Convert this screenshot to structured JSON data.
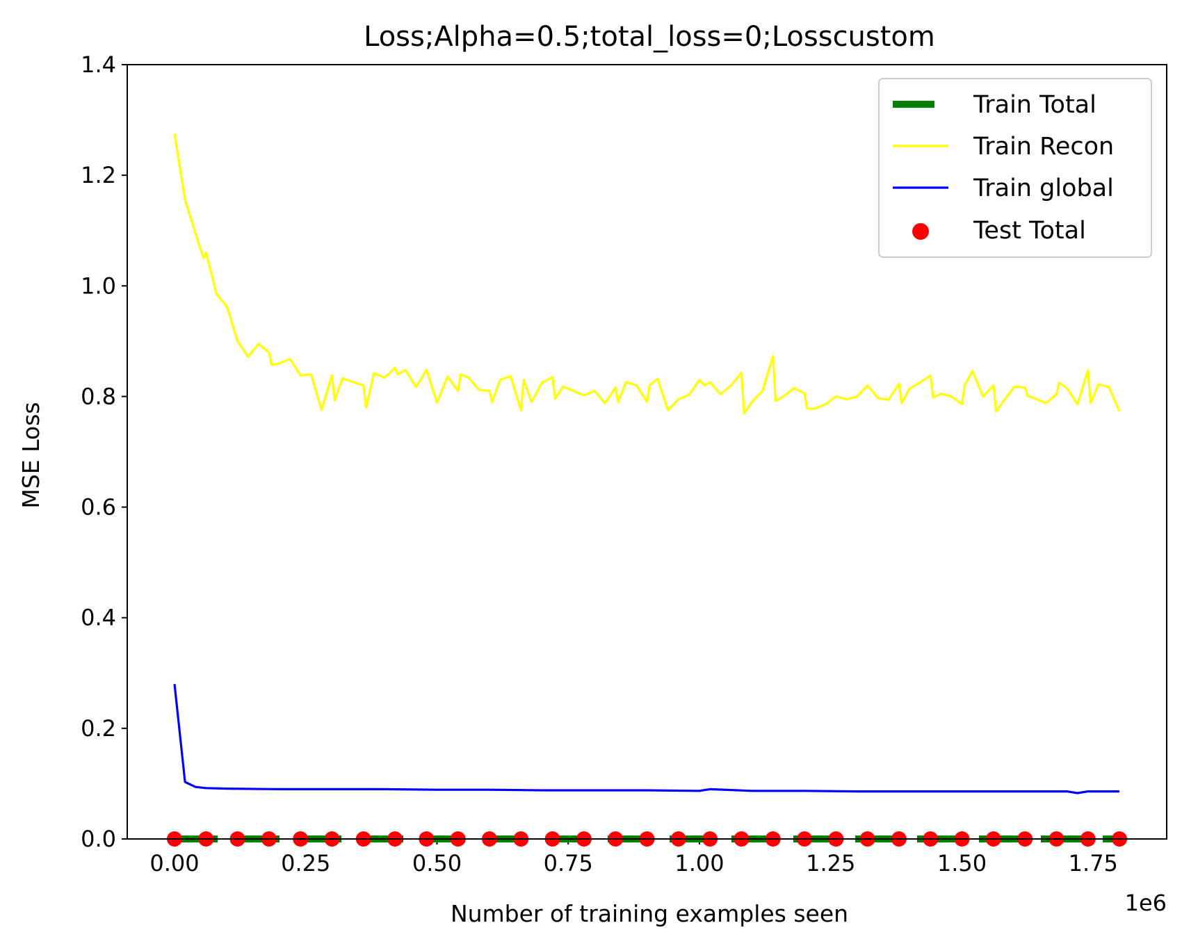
{
  "chart_data": {
    "type": "line",
    "title": "Loss;Alpha=0.5;total_loss=0;Losscustom",
    "xlabel": "Number of training examples seen",
    "ylabel": "MSE Loss",
    "x_offset_label": "1e6",
    "xlim": [
      -0.09,
      1.89
    ],
    "ylim": [
      0,
      1.4
    ],
    "x_scale_multiplier": 1000000,
    "x_ticks": [
      0.0,
      0.25,
      0.5,
      0.75,
      1.0,
      1.25,
      1.5,
      1.75
    ],
    "x_tick_labels": [
      "0.00",
      "0.25",
      "0.50",
      "0.75",
      "1.00",
      "1.25",
      "1.50",
      "1.75"
    ],
    "y_ticks": [
      0.0,
      0.2,
      0.4,
      0.6,
      0.8,
      1.0,
      1.2,
      1.4
    ],
    "y_tick_labels": [
      "0.0",
      "0.2",
      "0.4",
      "0.6",
      "0.8",
      "1.0",
      "1.2",
      "1.4"
    ],
    "grid": false,
    "legend_position": "top-right",
    "series": [
      {
        "name": "Train Total",
        "style": "dashed",
        "color": "#008000",
        "x": [
          0.0,
          1.8
        ],
        "y": [
          0.0,
          0.0
        ]
      },
      {
        "name": "Train Recon",
        "style": "line",
        "color": "#ffff00",
        "x": [
          0.0,
          0.02,
          0.04,
          0.055,
          0.06,
          0.08,
          0.1,
          0.12,
          0.14,
          0.16,
          0.18,
          0.185,
          0.2,
          0.22,
          0.24,
          0.26,
          0.28,
          0.3,
          0.305,
          0.32,
          0.34,
          0.36,
          0.365,
          0.38,
          0.4,
          0.42,
          0.425,
          0.44,
          0.46,
          0.48,
          0.5,
          0.52,
          0.54,
          0.545,
          0.56,
          0.58,
          0.6,
          0.605,
          0.62,
          0.64,
          0.66,
          0.665,
          0.68,
          0.7,
          0.72,
          0.725,
          0.74,
          0.76,
          0.78,
          0.8,
          0.82,
          0.84,
          0.845,
          0.86,
          0.88,
          0.9,
          0.905,
          0.92,
          0.94,
          0.96,
          0.98,
          1.0,
          1.01,
          1.02,
          1.04,
          1.06,
          1.08,
          1.085,
          1.1,
          1.12,
          1.14,
          1.145,
          1.16,
          1.18,
          1.2,
          1.205,
          1.22,
          1.24,
          1.26,
          1.28,
          1.3,
          1.32,
          1.34,
          1.36,
          1.38,
          1.385,
          1.4,
          1.42,
          1.44,
          1.445,
          1.46,
          1.48,
          1.5,
          1.505,
          1.52,
          1.54,
          1.56,
          1.565,
          1.58,
          1.6,
          1.62,
          1.625,
          1.64,
          1.66,
          1.68,
          1.685,
          1.7,
          1.72,
          1.74,
          1.745,
          1.76,
          1.78,
          1.8
        ],
        "y": [
          1.275,
          1.155,
          1.095,
          1.05,
          1.06,
          0.985,
          0.962,
          0.9,
          0.872,
          0.895,
          0.88,
          0.857,
          0.86,
          0.868,
          0.838,
          0.84,
          0.776,
          0.838,
          0.793,
          0.833,
          0.826,
          0.82,
          0.78,
          0.842,
          0.834,
          0.852,
          0.84,
          0.848,
          0.817,
          0.848,
          0.789,
          0.836,
          0.81,
          0.84,
          0.834,
          0.812,
          0.81,
          0.79,
          0.83,
          0.837,
          0.775,
          0.83,
          0.79,
          0.825,
          0.835,
          0.796,
          0.818,
          0.81,
          0.802,
          0.81,
          0.788,
          0.816,
          0.79,
          0.826,
          0.82,
          0.79,
          0.82,
          0.832,
          0.775,
          0.795,
          0.803,
          0.83,
          0.82,
          0.826,
          0.804,
          0.82,
          0.843,
          0.77,
          0.79,
          0.81,
          0.873,
          0.792,
          0.8,
          0.815,
          0.806,
          0.778,
          0.778,
          0.786,
          0.8,
          0.795,
          0.8,
          0.82,
          0.797,
          0.794,
          0.823,
          0.788,
          0.814,
          0.825,
          0.838,
          0.798,
          0.805,
          0.8,
          0.786,
          0.82,
          0.846,
          0.8,
          0.82,
          0.773,
          0.793,
          0.818,
          0.816,
          0.801,
          0.796,
          0.788,
          0.804,
          0.825,
          0.815,
          0.786,
          0.848,
          0.788,
          0.822,
          0.817,
          0.773
        ]
      },
      {
        "name": "Train global",
        "style": "line",
        "color": "#0000ff",
        "x": [
          0.0,
          0.02,
          0.04,
          0.06,
          0.1,
          0.2,
          0.3,
          0.4,
          0.5,
          0.6,
          0.7,
          0.8,
          0.9,
          1.0,
          1.02,
          1.1,
          1.2,
          1.3,
          1.4,
          1.5,
          1.6,
          1.7,
          1.72,
          1.74,
          1.8
        ],
        "y": [
          0.28,
          0.103,
          0.094,
          0.092,
          0.091,
          0.09,
          0.09,
          0.09,
          0.089,
          0.089,
          0.088,
          0.088,
          0.088,
          0.087,
          0.09,
          0.087,
          0.087,
          0.086,
          0.086,
          0.086,
          0.086,
          0.086,
          0.083,
          0.086,
          0.086
        ]
      },
      {
        "name": "Test Total",
        "style": "scatter",
        "color": "#ff0000",
        "x": [
          0.0,
          0.06,
          0.12,
          0.18,
          0.24,
          0.3,
          0.36,
          0.42,
          0.48,
          0.54,
          0.6,
          0.66,
          0.72,
          0.78,
          0.84,
          0.9,
          0.96,
          1.02,
          1.08,
          1.14,
          1.2,
          1.26,
          1.32,
          1.38,
          1.44,
          1.5,
          1.56,
          1.62,
          1.68,
          1.74,
          1.8
        ],
        "y": [
          0.0,
          0.0,
          0.0,
          0.0,
          0.0,
          0.0,
          0.0,
          0.0,
          0.0,
          0.0,
          0.0,
          0.0,
          0.0,
          0.0,
          0.0,
          0.0,
          0.0,
          0.0,
          0.0,
          0.0,
          0.0,
          0.0,
          0.0,
          0.0,
          0.0,
          0.0,
          0.0,
          0.0,
          0.0,
          0.0,
          0.0
        ]
      }
    ]
  }
}
